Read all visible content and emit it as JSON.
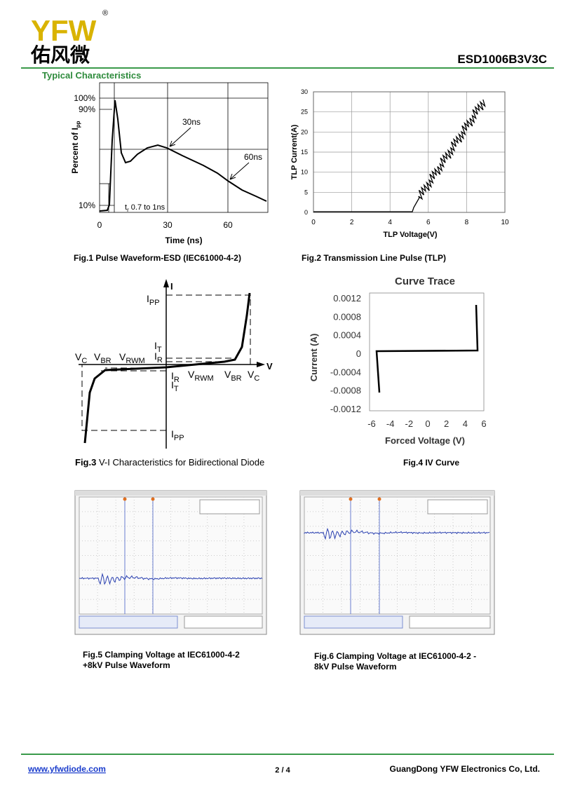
{
  "header": {
    "logo": "YFW",
    "logo_mark": "®",
    "logo_cn": "佑风微",
    "part_number": "ESD1006B3V3C",
    "section": "Typical Characteristics"
  },
  "fig1": {
    "caption": "Fig.1 Pulse Waveform-ESD (IEC61000-4-2)",
    "y_label_main": "Percent of I",
    "y_label_sub": "pp",
    "x_label": "Time (ns)",
    "yticks": [
      "100%",
      "90%",
      "10%"
    ],
    "xticks": [
      "0",
      "30",
      "60"
    ],
    "note_30": "30ns",
    "note_60": "60ns",
    "note_tr_main": "t",
    "note_tr_sub": "r",
    "note_tr_rest": " 0.7 to 1ns"
  },
  "fig2": {
    "caption": "Fig.2 Transmission Line Pulse (TLP)",
    "y_label": "TLP Current(A)",
    "x_label": "TLP Voltage(V)",
    "yticks": [
      "0",
      "5",
      "10",
      "15",
      "20",
      "25",
      "30"
    ],
    "xticks": [
      "0",
      "2",
      "4",
      "6",
      "8",
      "10"
    ]
  },
  "fig3": {
    "caption_bold": "Fig.3",
    "caption_rest": " V-I Characteristics for Bidirectional Diode",
    "axis_i": "I",
    "axis_v": "V",
    "labels": [
      {
        "main": "I",
        "sub": "PP"
      },
      {
        "main": "I",
        "sub": "T"
      },
      {
        "main": "I",
        "sub": "R"
      },
      {
        "main": "V",
        "sub": "C"
      },
      {
        "main": "V",
        "sub": "BR"
      },
      {
        "main": "V",
        "sub": "RWM"
      },
      {
        "main": "I",
        "sub": "R"
      },
      {
        "main": "I",
        "sub": "T"
      },
      {
        "main": "V",
        "sub": "RWM"
      },
      {
        "main": "V",
        "sub": "BR"
      },
      {
        "main": "V",
        "sub": "C"
      },
      {
        "main": "I",
        "sub": "PP"
      }
    ]
  },
  "fig4": {
    "title": "Curve Trace",
    "caption": "Fig.4 IV Curve",
    "y_label": "Current (A)",
    "x_label": "Forced Voltage (V)",
    "yticks": [
      "0.0012",
      "0.0008",
      "0.0004",
      "0",
      "-0.0004",
      "-0.0008",
      "-0.0012"
    ],
    "xticks": [
      "-6",
      "-4",
      "-2",
      "0",
      "2",
      "4",
      "6"
    ]
  },
  "fig5": {
    "caption_lines": [
      "Fig.5 Clamping Voltage at IEC61000-4-2",
      "+8kV Pulse Waveform"
    ]
  },
  "fig6": {
    "caption_lines": [
      "Fig.6 Clamping Voltage at IEC61000-4-2 -",
      "8kV Pulse Waveform"
    ]
  },
  "footer": {
    "website": "www.yfwdiode.com",
    "page": "2 / 4",
    "company": "GuangDong YFW Electronics Co, Ltd."
  }
}
